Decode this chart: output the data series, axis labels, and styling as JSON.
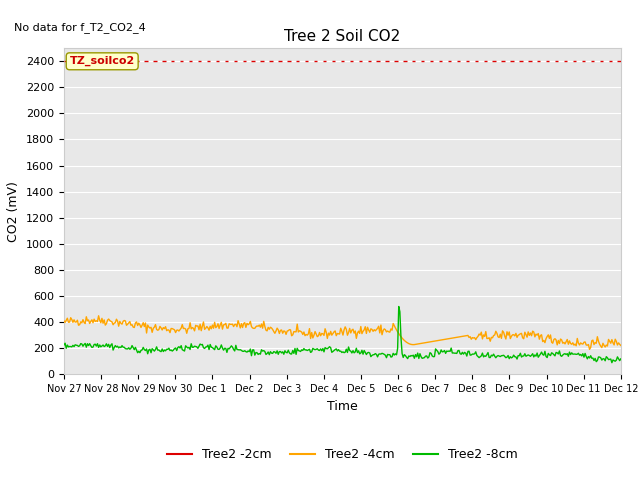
{
  "title": "Tree 2 Soil CO2",
  "no_data_text": "No data for f_T2_CO2_4",
  "ylabel": "CO2 (mV)",
  "xlabel": "Time",
  "fig_bg_color": "#ffffff",
  "plot_bg_color": "#e8e8e8",
  "ylim": [
    0,
    2500
  ],
  "yticks": [
    0,
    200,
    400,
    600,
    800,
    1000,
    1200,
    1400,
    1600,
    1800,
    2000,
    2200,
    2400
  ],
  "xtick_labels": [
    "Nov 27",
    "Nov 28",
    "Nov 29",
    "Nov 30",
    "Dec 1",
    "Dec 2",
    "Dec 3",
    "Dec 4",
    "Dec 5",
    "Dec 6",
    "Dec 7",
    "Dec 8",
    "Dec 9",
    "Dec 10",
    "Dec 11",
    "Dec 12"
  ],
  "annotation_label": "TZ_soilco2",
  "annotation_color": "#cc0000",
  "annotation_bg": "#ffffcc",
  "annotation_edge": "#999900",
  "line_red_color": "#dd0000",
  "line_orange_color": "#ffa500",
  "line_green_color": "#00bb00",
  "legend_labels": [
    "Tree2 -2cm",
    "Tree2 -4cm",
    "Tree2 -8cm"
  ],
  "num_points": 500,
  "grid_color": "#ffffff"
}
